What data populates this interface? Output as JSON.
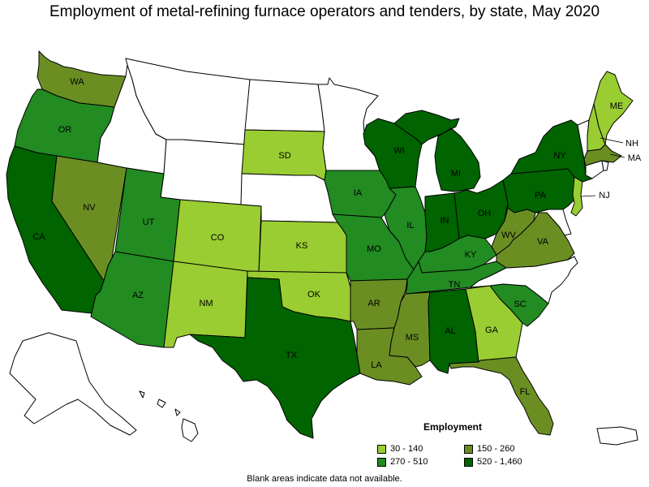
{
  "title": "Employment of metal-refining furnace operators and tenders, by state, May 2020",
  "note": "Blank areas indicate data not available.",
  "legend": {
    "title": "Employment",
    "items": [
      {
        "label": "30 - 140",
        "color": "#9acd32"
      },
      {
        "label": "150 - 260",
        "color": "#6b8e23"
      },
      {
        "label": "270 - 510",
        "color": "#228b22"
      },
      {
        "label": "520 - 1,460",
        "color": "#006400"
      }
    ]
  },
  "colors": {
    "none": "#ffffff",
    "c1": "#9acd32",
    "c2": "#6b8e23",
    "c3": "#228b22",
    "c4": "#006400"
  },
  "states": [
    {
      "abbr": "WA",
      "cls": "c2"
    },
    {
      "abbr": "OR",
      "cls": "c3"
    },
    {
      "abbr": "CA",
      "cls": "c4"
    },
    {
      "abbr": "NV",
      "cls": "c2"
    },
    {
      "abbr": "ID",
      "cls": "none"
    },
    {
      "abbr": "MT",
      "cls": "none"
    },
    {
      "abbr": "WY",
      "cls": "none"
    },
    {
      "abbr": "UT",
      "cls": "c3"
    },
    {
      "abbr": "AZ",
      "cls": "c3"
    },
    {
      "abbr": "CO",
      "cls": "c1"
    },
    {
      "abbr": "NM",
      "cls": "c1"
    },
    {
      "abbr": "ND",
      "cls": "none"
    },
    {
      "abbr": "SD",
      "cls": "c1"
    },
    {
      "abbr": "NE",
      "cls": "none"
    },
    {
      "abbr": "KS",
      "cls": "c1"
    },
    {
      "abbr": "OK",
      "cls": "c1"
    },
    {
      "abbr": "TX",
      "cls": "c4"
    },
    {
      "abbr": "MN",
      "cls": "none"
    },
    {
      "abbr": "IA",
      "cls": "c3"
    },
    {
      "abbr": "MO",
      "cls": "c3"
    },
    {
      "abbr": "AR",
      "cls": "c2"
    },
    {
      "abbr": "LA",
      "cls": "c2"
    },
    {
      "abbr": "WI",
      "cls": "c4"
    },
    {
      "abbr": "IL",
      "cls": "c3"
    },
    {
      "abbr": "MI",
      "cls": "c4"
    },
    {
      "abbr": "IN",
      "cls": "c4"
    },
    {
      "abbr": "OH",
      "cls": "c4"
    },
    {
      "abbr": "KY",
      "cls": "c3"
    },
    {
      "abbr": "TN",
      "cls": "c3"
    },
    {
      "abbr": "MS",
      "cls": "c2"
    },
    {
      "abbr": "AL",
      "cls": "c4"
    },
    {
      "abbr": "GA",
      "cls": "c1"
    },
    {
      "abbr": "FL",
      "cls": "c2"
    },
    {
      "abbr": "SC",
      "cls": "c3"
    },
    {
      "abbr": "NC",
      "cls": "none"
    },
    {
      "abbr": "VA",
      "cls": "c2"
    },
    {
      "abbr": "WV",
      "cls": "c2"
    },
    {
      "abbr": "PA",
      "cls": "c4"
    },
    {
      "abbr": "NY",
      "cls": "c4"
    },
    {
      "abbr": "ME",
      "cls": "c1"
    },
    {
      "abbr": "NH",
      "cls": "c1"
    },
    {
      "abbr": "VT",
      "cls": "none"
    },
    {
      "abbr": "MA",
      "cls": "c2"
    },
    {
      "abbr": "NJ",
      "cls": "c1"
    },
    {
      "abbr": "AK",
      "cls": "none"
    },
    {
      "abbr": "HI",
      "cls": "none"
    },
    {
      "abbr": "PR",
      "cls": "none"
    }
  ]
}
